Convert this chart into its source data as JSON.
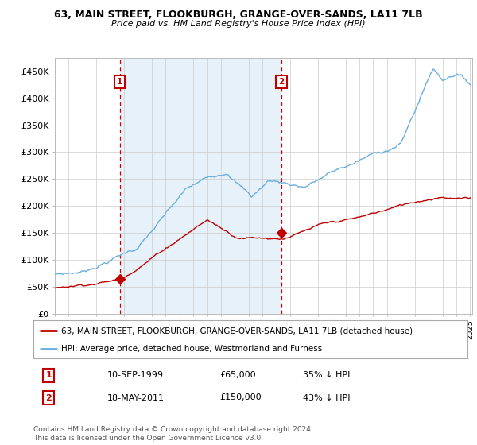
{
  "title": "63, MAIN STREET, FLOOKBURGH, GRANGE-OVER-SANDS, LA11 7LB",
  "subtitle": "Price paid vs. HM Land Registry's House Price Index (HPI)",
  "ylim": [
    0,
    475000
  ],
  "yticks": [
    0,
    50000,
    100000,
    150000,
    200000,
    250000,
    300000,
    350000,
    400000,
    450000
  ],
  "ytick_labels": [
    "£0",
    "£50K",
    "£100K",
    "£150K",
    "£200K",
    "£250K",
    "£300K",
    "£350K",
    "£400K",
    "£450K"
  ],
  "sale1": {
    "date_num": 1999.69,
    "price": 65000,
    "label": "1",
    "date_str": "10-SEP-1999",
    "pct": "35% ↓ HPI"
  },
  "sale2": {
    "date_num": 2011.38,
    "price": 150000,
    "label": "2",
    "date_str": "18-MAY-2011",
    "pct": "43% ↓ HPI"
  },
  "legend1": "63, MAIN STREET, FLOOKBURGH, GRANGE-OVER-SANDS, LA11 7LB (detached house)",
  "legend2": "HPI: Average price, detached house, Westmorland and Furness",
  "footer": "Contains HM Land Registry data © Crown copyright and database right 2024.\nThis data is licensed under the Open Government Licence v3.0.",
  "hpi_color": "#6aaee0",
  "hpi_fill_color": "#d6e9f8",
  "price_color": "#c00000",
  "vline_color": "#cc0000",
  "bg_color": "#ffffff",
  "grid_color": "#cccccc",
  "xstart": 1995,
  "xend": 2025
}
